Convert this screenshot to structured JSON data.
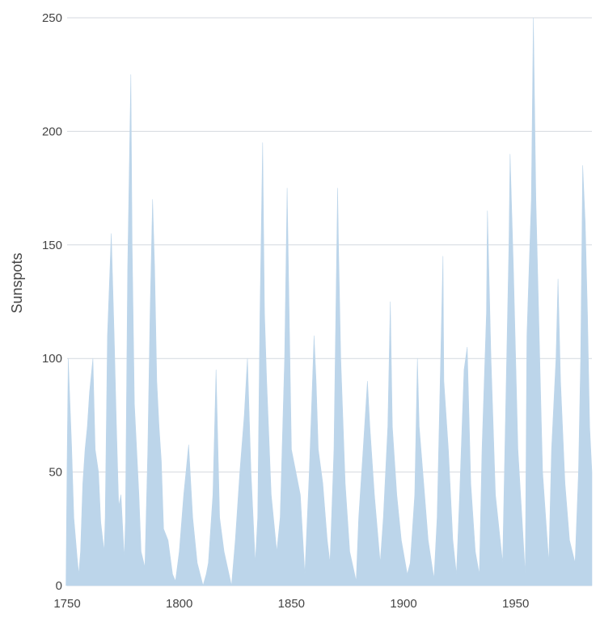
{
  "chart_data": {
    "type": "area",
    "title": "",
    "xlabel": "",
    "ylabel": "Sunspots",
    "xlim": [
      1750,
      1984
    ],
    "ylim": [
      0,
      250
    ],
    "x_ticks": [
      1750,
      1800,
      1850,
      1900,
      1950
    ],
    "y_ticks": [
      0,
      50,
      100,
      150,
      200,
      250
    ],
    "grid": "horizontal",
    "legend": "none",
    "colors": {
      "area_fill": "#bcd5ea",
      "grid": "#d4d9df",
      "axis_text": "#444444"
    },
    "series": [
      {
        "x": [
          1749.5,
          1750.5,
          1752,
          1753,
          1754.5,
          1755.2,
          1756,
          1757,
          1758,
          1759,
          1760,
          1761.5,
          1762.5,
          1764,
          1765,
          1766.5,
          1767,
          1768,
          1769.7,
          1771,
          1772,
          1773,
          1774,
          1775.5,
          1776,
          1777,
          1778.4,
          1779,
          1780,
          1781,
          1782,
          1783,
          1784.7,
          1786,
          1787,
          1788.1,
          1789,
          1790,
          1791,
          1792,
          1793,
          1795,
          1797,
          1798.3,
          1800,
          1802,
          1803,
          1804.2,
          1806,
          1808,
          1810.6,
          1812,
          1813,
          1815,
          1816.4,
          1818,
          1820,
          1823.3,
          1825,
          1827,
          1829,
          1830.4,
          1832,
          1833.9,
          1835,
          1836,
          1837.2,
          1838,
          1839,
          1841,
          1843.5,
          1845,
          1847,
          1848.1,
          1849,
          1850,
          1852,
          1854,
          1856,
          1858,
          1860.1,
          1861,
          1862,
          1864,
          1866,
          1867.2,
          1869,
          1870.6,
          1871,
          1872,
          1874,
          1876,
          1878.9,
          1880,
          1882,
          1883.9,
          1885,
          1887,
          1889.6,
          1891,
          1893,
          1894.1,
          1895,
          1897,
          1899,
          1901.7,
          1903,
          1905,
          1906.2,
          1907,
          1909,
          1911,
          1913.6,
          1915,
          1917.6,
          1918,
          1920,
          1922,
          1923.6,
          1925,
          1927,
          1928.4,
          1930,
          1932,
          1933.8,
          1935,
          1937,
          1937.4,
          1939,
          1941,
          1944.2,
          1945,
          1947,
          1947.5,
          1949,
          1951,
          1954.3,
          1955,
          1957,
          1957.9,
          1959,
          1961,
          1962,
          1964.8,
          1966,
          1968,
          1968.9,
          1970,
          1972,
          1974,
          1976.5,
          1978,
          1979,
          1979.9,
          1981,
          1982,
          1983,
          1984
        ],
        "values": [
          55,
          100,
          62,
          30,
          12,
          5,
          15,
          45,
          60,
          70,
          85,
          100,
          60,
          50,
          28,
          15,
          30,
          110,
          155,
          110,
          70,
          35,
          40,
          12,
          28,
          140,
          225,
          150,
          80,
          60,
          40,
          15,
          8,
          60,
          120,
          170,
          140,
          90,
          70,
          55,
          25,
          20,
          5,
          2,
          15,
          40,
          50,
          62,
          30,
          10,
          0,
          5,
          10,
          40,
          95,
          30,
          15,
          0,
          20,
          50,
          75,
          100,
          50,
          10,
          30,
          120,
          195,
          120,
          90,
          40,
          15,
          30,
          100,
          175,
          120,
          60,
          50,
          40,
          5,
          50,
          110,
          90,
          60,
          45,
          20,
          10,
          60,
          175,
          150,
          100,
          45,
          15,
          2,
          30,
          60,
          90,
          70,
          40,
          10,
          30,
          70,
          125,
          70,
          40,
          20,
          5,
          10,
          40,
          100,
          70,
          45,
          20,
          3,
          30,
          145,
          90,
          60,
          20,
          5,
          40,
          95,
          105,
          45,
          15,
          5,
          60,
          120,
          165,
          100,
          40,
          10,
          50,
          150,
          190,
          140,
          60,
          5,
          110,
          170,
          250,
          170,
          90,
          50,
          10,
          60,
          100,
          135,
          90,
          45,
          20,
          10,
          50,
          100,
          185,
          160,
          120,
          70,
          50
        ]
      }
    ]
  }
}
